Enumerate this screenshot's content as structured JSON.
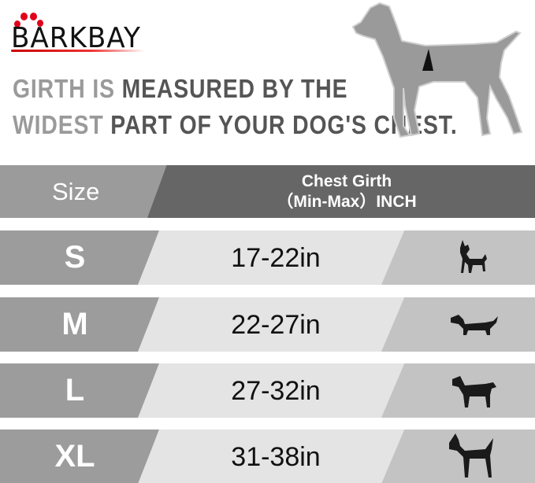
{
  "brand": {
    "logo_text": "BARKBAY",
    "accent": "#e0001a"
  },
  "tagline": {
    "line1_light": "GIRTH IS ",
    "line1_dark": "MEASURED BY THE",
    "line2_light": "WIDEST ",
    "line2_dark": "PART OF YOUR DOG'S CHEST."
  },
  "table": {
    "header": {
      "size": "Size",
      "girth_line1": "Chest Girth",
      "girth_line2": "（Min-Max）INCH"
    },
    "rows": [
      {
        "size": "S",
        "girth": "17-22in",
        "icon": "chihuahua-icon"
      },
      {
        "size": "M",
        "girth": "22-27in",
        "icon": "dachshund-icon"
      },
      {
        "size": "L",
        "girth": "27-32in",
        "icon": "labrador-icon"
      },
      {
        "size": "XL",
        "girth": "31-38in",
        "icon": "great-dane-icon"
      }
    ]
  }
}
